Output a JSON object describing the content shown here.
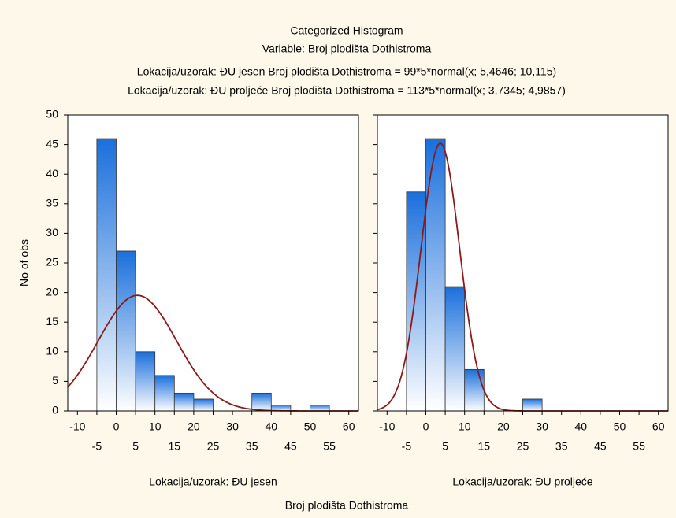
{
  "chart_data": {
    "type": "histogram",
    "title": "Categorized Histogram",
    "subtitle": "Variable: Broj plodišta Dothistroma",
    "fit_labels": [
      "Lokacija/uzorak: ĐU jesen Broj plodišta Dothistroma = 99*5*normal(x; 5,4646; 10,115)",
      "Lokacija/uzorak: ĐU proljeće Broj plodišta Dothistroma = 113*5*normal(x; 3,7345; 4,9857)"
    ],
    "xlabel": "Broj plodišta Dothistroma",
    "ylabel": "No of obs",
    "xlim": [
      -12.5,
      62.5
    ],
    "ylim": [
      0,
      50
    ],
    "xticks": [
      -10,
      -5,
      0,
      5,
      10,
      15,
      20,
      25,
      30,
      35,
      40,
      45,
      50,
      55,
      60
    ],
    "yticks": [
      0,
      5,
      10,
      15,
      20,
      25,
      30,
      35,
      40,
      45,
      50
    ],
    "color": "#1a6fdc",
    "curve_color": "#8b1a1a",
    "panels": [
      {
        "name": "Lokacija/uzorak: ĐU jesen",
        "bins": [
          -5,
          0,
          5,
          10,
          15,
          20,
          25,
          30,
          35,
          40,
          45,
          50,
          55
        ],
        "counts": [
          46,
          27,
          10,
          6,
          3,
          2,
          0,
          0,
          3,
          1,
          0,
          1
        ],
        "fit": {
          "n": 99,
          "bin_width": 5,
          "mean": 5.4646,
          "sd": 10.115
        }
      },
      {
        "name": "Lokacija/uzorak: ĐU proljeće",
        "bins": [
          -5,
          0,
          5,
          10,
          15,
          20,
          25,
          30
        ],
        "counts": [
          37,
          46,
          21,
          7,
          0,
          0,
          2
        ],
        "fit": {
          "n": 113,
          "bin_width": 5,
          "mean": 3.7345,
          "sd": 4.9857
        }
      }
    ]
  }
}
